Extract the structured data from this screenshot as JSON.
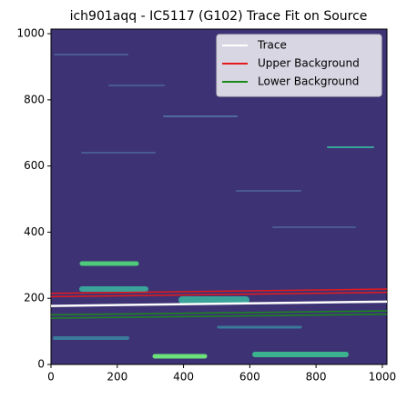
{
  "chart_data": {
    "type": "line",
    "title": "ich901aqq - IC5117 (G102) Trace Fit on Source",
    "xlim": [
      0,
      1014
    ],
    "ylim": [
      0,
      1014
    ],
    "xticks": [
      0,
      200,
      400,
      600,
      800,
      1000
    ],
    "yticks": [
      0,
      200,
      400,
      600,
      800,
      1000
    ],
    "legend": "upper right",
    "series": [
      {
        "name": "Trace",
        "color": "#ffffff",
        "lines": [
          {
            "x": [
              0,
              1014
            ],
            "values": [
              177,
              190
            ]
          }
        ]
      },
      {
        "name": "Upper Background",
        "color": "#e41a1c",
        "lines": [
          {
            "x": [
              0,
              1014
            ],
            "values": [
              205,
              218
            ]
          },
          {
            "x": [
              0,
              1014
            ],
            "values": [
              215,
              228
            ]
          }
        ]
      },
      {
        "name": "Lower Background",
        "color": "#1a8a1a",
        "lines": [
          {
            "x": [
              0,
              1014
            ],
            "values": [
              140,
              152
            ]
          },
          {
            "x": [
              0,
              1014
            ],
            "values": [
              150,
              162
            ]
          }
        ]
      }
    ]
  }
}
